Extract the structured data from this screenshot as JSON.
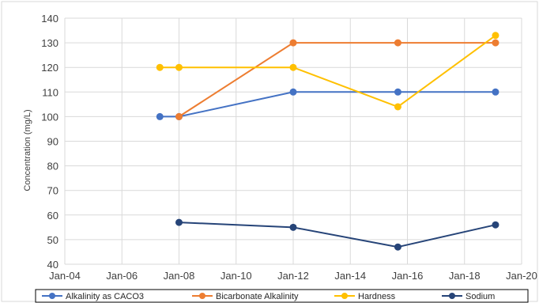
{
  "chart_data": {
    "type": "line",
    "title": "",
    "ylabel": "Concentration (mg/L)",
    "xlabel": "",
    "ylim": [
      40,
      140
    ],
    "yticks": [
      40,
      50,
      60,
      70,
      80,
      90,
      100,
      110,
      120,
      130,
      140
    ],
    "xticks": [
      "Jan-04",
      "Jan-06",
      "Jan-08",
      "Jan-10",
      "Jan-12",
      "Jan-14",
      "Jan-16",
      "Jan-18",
      "Jan-20"
    ],
    "xlim": [
      "2004-01-01",
      "2020-01-01"
    ],
    "grid": true,
    "legend_position": "bottom",
    "series": [
      {
        "name": "Alkalinity as CACO3",
        "color": "#4472C4",
        "points": [
          [
            "2007-05-01",
            100
          ],
          [
            "2008-01-01",
            100
          ],
          [
            "2012-01-01",
            110
          ],
          [
            "2015-09-01",
            110
          ],
          [
            "2019-02-01",
            110
          ]
        ]
      },
      {
        "name": "Bicarbonate Alkalinity",
        "color": "#ED7D31",
        "points": [
          [
            "2008-01-01",
            100
          ],
          [
            "2012-01-01",
            130
          ],
          [
            "2015-09-01",
            130
          ],
          [
            "2019-02-01",
            130
          ]
        ]
      },
      {
        "name": "Hardness",
        "color": "#FFC000",
        "points": [
          [
            "2007-05-01",
            120
          ],
          [
            "2008-01-01",
            120
          ],
          [
            "2012-01-01",
            120
          ],
          [
            "2015-09-01",
            104
          ],
          [
            "2019-02-01",
            133
          ]
        ]
      },
      {
        "name": "Sodium",
        "color": "#264478",
        "points": [
          [
            "2008-01-01",
            57
          ],
          [
            "2012-01-01",
            55
          ],
          [
            "2015-09-01",
            47
          ],
          [
            "2019-02-01",
            56
          ]
        ]
      }
    ]
  }
}
